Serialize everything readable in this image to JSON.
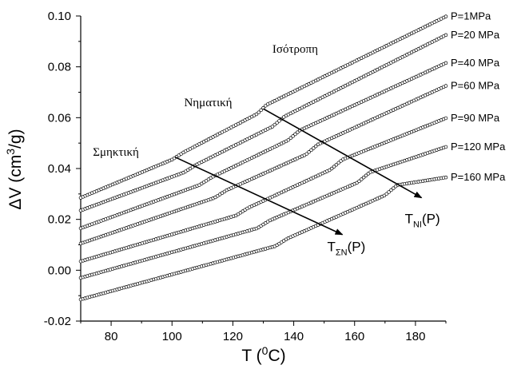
{
  "chart_data": {
    "type": "scatter",
    "xlabel": {
      "main": "T (",
      "sup": "0",
      "unit": "C)"
    },
    "ylabel": {
      "main": "ΔV (cm",
      "sup": "3",
      "unit": "/g)"
    },
    "xlim": [
      70,
      190
    ],
    "ylim": [
      -0.02,
      0.1
    ],
    "x_ticks": [
      80,
      100,
      120,
      140,
      160,
      180
    ],
    "y_ticks": [
      "-0.02",
      "0.00",
      "0.02",
      "0.04",
      "0.06",
      "0.08",
      "0.10"
    ],
    "grid": false,
    "series": [
      {
        "name": "P=1MPa",
        "points": [
          [
            70,
            0.0285
          ],
          [
            100,
            0.0435
          ],
          [
            104,
            0.0465
          ],
          [
            128,
            0.0615
          ],
          [
            131,
            0.065
          ],
          [
            190,
            0.0998
          ]
        ]
      },
      {
        "name": "P=20 MPa",
        "points": [
          [
            70,
            0.0235
          ],
          [
            104,
            0.0385
          ],
          [
            108,
            0.0415
          ],
          [
            133,
            0.0565
          ],
          [
            137,
            0.0605
          ],
          [
            190,
            0.0925
          ]
        ]
      },
      {
        "name": "P=40 MPa",
        "points": [
          [
            70,
            0.0165
          ],
          [
            109,
            0.0335
          ],
          [
            113,
            0.0365
          ],
          [
            138,
            0.051
          ],
          [
            142,
            0.055
          ],
          [
            190,
            0.0815
          ]
        ]
      },
      {
        "name": "P=60 MPa",
        "points": [
          [
            70,
            0.0105
          ],
          [
            114,
            0.0285
          ],
          [
            118,
            0.0315
          ],
          [
            144,
            0.0455
          ],
          [
            148,
            0.0495
          ],
          [
            190,
            0.0725
          ]
        ]
      },
      {
        "name": "P=90 MPa",
        "points": [
          [
            70,
            0.0035
          ],
          [
            121,
            0.0215
          ],
          [
            125,
            0.0245
          ],
          [
            152,
            0.0395
          ],
          [
            156,
            0.0435
          ],
          [
            190,
            0.0598
          ]
        ]
      },
      {
        "name": "P=120 MPa",
        "points": [
          [
            70,
            -0.003
          ],
          [
            128,
            0.0165
          ],
          [
            132,
            0.0195
          ],
          [
            161,
            0.0345
          ],
          [
            165,
            0.0385
          ],
          [
            190,
            0.0485
          ]
        ]
      },
      {
        "name": "P=160 MPa",
        "points": [
          [
            70,
            -0.0115
          ],
          [
            134,
            0.0095
          ],
          [
            138,
            0.0125
          ],
          [
            170,
            0.0295
          ],
          [
            174,
            0.0335
          ],
          [
            190,
            0.0365
          ]
        ]
      }
    ],
    "annotations": {
      "phases": [
        {
          "text": "Σμηκτική",
          "x": 74,
          "y": 0.045
        },
        {
          "text": "Νηματική",
          "x": 104,
          "y": 0.0645
        },
        {
          "text": "Ισότροπη",
          "x": 133,
          "y": 0.0855
        }
      ],
      "transition_lines": [
        {
          "name": "smectic-nematic",
          "from": [
            101,
            0.0445
          ],
          "to": [
            156,
            0.014
          ],
          "label_main": "T",
          "label_sub": "ΣΝ",
          "label_tail": "(P)",
          "label_x": 151,
          "label_y": 0.0075
        },
        {
          "name": "nematic-isotropic",
          "from": [
            130,
            0.0635
          ],
          "to": [
            182,
            0.0285
          ],
          "label_main": "T",
          "label_sub": "NI",
          "label_tail": "(P)",
          "label_x": 176.5,
          "label_y": 0.0185
        }
      ]
    }
  }
}
